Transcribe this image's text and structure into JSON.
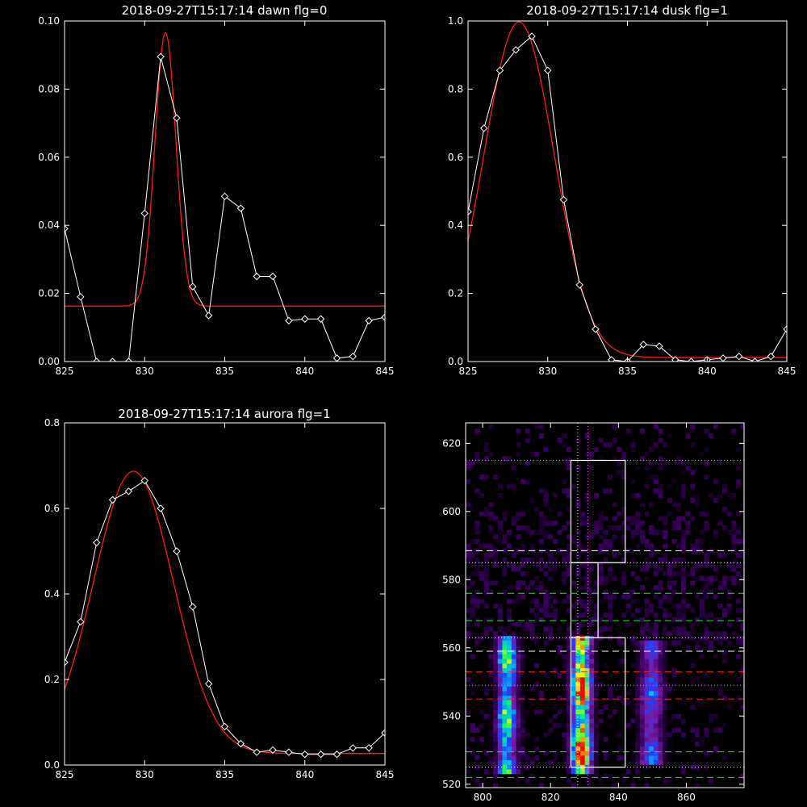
{
  "chart_data": [
    {
      "type": "line",
      "title": "2018-09-27T15:17:14 dawn flg=0",
      "xlim": [
        825,
        845
      ],
      "ylim": [
        0,
        0.1
      ],
      "xticks": [
        "825",
        "830",
        "835",
        "840",
        "845"
      ],
      "yticks": [
        "0.00",
        "0.02",
        "0.04",
        "0.06",
        "0.08",
        "0.10"
      ],
      "series": [
        {
          "style": "white-line-diamonds",
          "color": "#ffffff",
          "x": [
            825,
            826,
            827,
            828,
            829,
            830,
            831,
            832,
            833,
            834,
            835,
            836,
            837,
            838,
            839,
            840,
            841,
            842,
            843,
            844,
            845
          ],
          "y": [
            0.039,
            0.019,
            0.0,
            0.0,
            0.0,
            0.0435,
            0.0895,
            0.0715,
            0.022,
            0.0135,
            0.0485,
            0.045,
            0.025,
            0.025,
            0.012,
            0.0125,
            0.0125,
            0.001,
            0.0015,
            0.012,
            0.013
          ]
        },
        {
          "style": "red-fit",
          "color": "#ff1a1a",
          "model": {
            "amplitude": 0.0803,
            "center": 831.3,
            "sigma": 0.65,
            "baseline": 0.0163
          }
        }
      ]
    },
    {
      "type": "line",
      "title": "2018-09-27T15:17:14 dusk flg=1",
      "xlim": [
        825,
        845
      ],
      "ylim": [
        0,
        1.0
      ],
      "xticks": [
        "825",
        "830",
        "835",
        "840",
        "845"
      ],
      "yticks": [
        "0.0",
        "0.2",
        "0.4",
        "0.6",
        "0.8",
        "1.0"
      ],
      "series": [
        {
          "style": "white-line-diamonds",
          "color": "#ffffff",
          "x": [
            825,
            826,
            827,
            828,
            829,
            830,
            831,
            832,
            833,
            834,
            835,
            836,
            837,
            838,
            839,
            840,
            841,
            842,
            843,
            844,
            845
          ],
          "y": [
            0.44,
            0.685,
            0.855,
            0.915,
            0.955,
            0.855,
            0.475,
            0.225,
            0.095,
            0.005,
            0.0,
            0.05,
            0.045,
            0.005,
            0.0,
            0.005,
            0.01,
            0.015,
            0.0,
            0.015,
            0.095
          ]
        },
        {
          "style": "red-fit",
          "color": "#ff1a1a",
          "model": {
            "amplitude": 0.985,
            "center": 828.2,
            "sigma": 2.2,
            "baseline": 0.012
          }
        }
      ]
    },
    {
      "type": "line",
      "title": "2018-09-27T15:17:14 aurora flg=1",
      "xlim": [
        825,
        845
      ],
      "ylim": [
        0,
        0.8
      ],
      "xticks": [
        "825",
        "830",
        "835",
        "840",
        "845"
      ],
      "yticks": [
        "0.0",
        "0.2",
        "0.4",
        "0.6",
        "0.8"
      ],
      "series": [
        {
          "style": "white-line-diamonds",
          "color": "#ffffff",
          "x": [
            825,
            826,
            827,
            828,
            829,
            830,
            831,
            832,
            833,
            834,
            835,
            836,
            837,
            838,
            839,
            840,
            841,
            842,
            843,
            844,
            845
          ],
          "y": [
            0.24,
            0.335,
            0.52,
            0.62,
            0.64,
            0.665,
            0.6,
            0.5,
            0.37,
            0.19,
            0.09,
            0.05,
            0.03,
            0.035,
            0.03,
            0.025,
            0.025,
            0.025,
            0.04,
            0.04,
            0.075
          ]
        },
        {
          "style": "red-fit",
          "color": "#ff1a1a",
          "model": {
            "amplitude": 0.66,
            "center": 829.3,
            "sigma": 2.5,
            "baseline": 0.027
          }
        }
      ]
    },
    {
      "type": "heatmap",
      "title": "",
      "xlim": [
        795,
        877
      ],
      "ylim": [
        519,
        626
      ],
      "xticks": [
        "800",
        "820",
        "840",
        "860"
      ],
      "yticks": [
        "520",
        "540",
        "560",
        "580",
        "600",
        "620"
      ],
      "colorscale": [
        "#000000",
        "#3a0060",
        "#7a1aa0",
        "#2040ff",
        "#00b4ff",
        "#00ff60",
        "#f0ff00",
        "#ff8000",
        "#ff0000"
      ],
      "bands": [
        {
          "name": "band-left",
          "x_center": 806.5,
          "x_halfwidth": 3,
          "y_range": [
            522,
            563
          ],
          "peak": 0.65
        },
        {
          "name": "band-center",
          "x_center": 828.5,
          "x_halfwidth": 3,
          "y_range": [
            523,
            563
          ],
          "peak": 0.95
        },
        {
          "name": "band-right",
          "x_center": 849,
          "x_halfwidth": 3.5,
          "y_range": [
            525,
            561
          ],
          "peak": 0.4
        }
      ],
      "vlines": [
        {
          "x": 828,
          "color": "#ffffff",
          "style": "dotted"
        },
        {
          "x": 831,
          "color": "#ff60ff",
          "style": "dotted"
        }
      ],
      "hlines": [
        {
          "y": 615,
          "color": "#ff60ff",
          "style": "dotted"
        },
        {
          "y": 588.5,
          "color": "#ffffff",
          "style": "dashed"
        },
        {
          "y": 585,
          "color": "#ffffff",
          "style": "dotted"
        },
        {
          "y": 576,
          "color": "#00ff00",
          "style": "dashed"
        },
        {
          "y": 568,
          "color": "#00ff00",
          "style": "dashed"
        },
        {
          "y": 563,
          "color": "#ffffff",
          "style": "dotted"
        },
        {
          "y": 559,
          "color": "#ffffff",
          "style": "dashed"
        },
        {
          "y": 553,
          "color": "#ff2020",
          "style": "dashed"
        },
        {
          "y": 549,
          "color": "#ff60ff",
          "style": "dotted"
        },
        {
          "y": 545,
          "color": "#ff2020",
          "style": "dashed"
        },
        {
          "y": 529.5,
          "color": "#00ff00",
          "style": "dashed"
        },
        {
          "y": 525,
          "color": "#ffffff",
          "style": "dotted"
        },
        {
          "y": 522,
          "color": "#00ff00",
          "style": "dashed"
        }
      ],
      "boxes": [
        {
          "name": "box-upper",
          "x0": 826,
          "x1": 842,
          "y0": 585,
          "y1": 615
        },
        {
          "name": "box-middle",
          "x0": 826,
          "x1": 834,
          "y0": 563,
          "y1": 585
        },
        {
          "name": "box-lower",
          "x0": 826,
          "x1": 842,
          "y0": 525,
          "y1": 563
        }
      ]
    }
  ]
}
